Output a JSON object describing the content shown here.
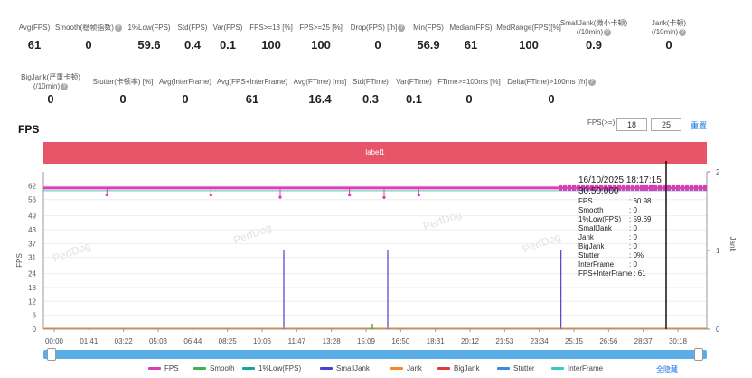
{
  "stats_row1": [
    {
      "label": "Avg(FPS)",
      "value": "61",
      "help": false
    },
    {
      "label": "Smooth(稳帧指数)",
      "value": "0",
      "help": true
    },
    {
      "label": "1%Low(FPS)",
      "value": "59.6",
      "help": false
    },
    {
      "label": "Std(FPS)",
      "value": "0.4",
      "help": false
    },
    {
      "label": "Var(FPS)",
      "value": "0.1",
      "help": false
    },
    {
      "label": "FPS>=18 [%]",
      "value": "100",
      "help": false
    },
    {
      "label": "FPS>=25 [%]",
      "value": "100",
      "help": false
    },
    {
      "label": "Drop(FPS) [/h]",
      "value": "0",
      "help": true
    },
    {
      "label": "Min(FPS)",
      "value": "56.9",
      "help": false
    },
    {
      "label": "Median(FPS)",
      "value": "61",
      "help": false
    },
    {
      "label": "MedRange(FPS)[%]",
      "value": "100",
      "help": false
    },
    {
      "label": "SmallJank(微小卡顿)",
      "label2": "(/10min)",
      "value": "0.9",
      "help": true
    },
    {
      "label": "Jank(卡顿)",
      "label2": "(/10min)",
      "value": "0",
      "help": true
    }
  ],
  "stats_row2": [
    {
      "label": "BigJank(严重卡顿)",
      "label2": "(/10min)",
      "value": "0",
      "help": true
    },
    {
      "label": "Stutter(卡顿率) [%]",
      "value": "0",
      "help": false
    },
    {
      "label": "Avg(InterFrame)",
      "value": "0",
      "help": false
    },
    {
      "label": "Avg(FPS+InterFrame)",
      "value": "61",
      "help": false
    },
    {
      "label": "Avg(FTime) [ms]",
      "value": "16.4",
      "help": false
    },
    {
      "label": "Std(FTime)",
      "value": "0.3",
      "help": false
    },
    {
      "label": "Var(FTime)",
      "value": "0.1",
      "help": false
    },
    {
      "label": "FTime>=100ms [%]",
      "value": "0",
      "help": false
    },
    {
      "label": "Delta(FTime)>100ms [/h]",
      "value": "0",
      "help": true
    }
  ],
  "section_title": "FPS",
  "fps_filter": {
    "label": "FPS(>=)",
    "value1": "18",
    "value2": "25",
    "reset_label": "重置"
  },
  "label_bar": "label1",
  "chart_data": {
    "type": "line",
    "x_ticks": [
      "00:00",
      "01:41",
      "03:22",
      "05:03",
      "06:44",
      "08:25",
      "10:06",
      "11:47",
      "13:28",
      "15:09",
      "16:50",
      "18:31",
      "20:12",
      "21:53",
      "23:34",
      "25:15",
      "26:56",
      "28:37",
      "30:18"
    ],
    "y_ticks_left": [
      "0",
      "6",
      "12",
      "18",
      "24",
      "31",
      "37",
      "43",
      "49",
      "56",
      "62"
    ],
    "y_ticks_right": [
      "0",
      "1",
      "2"
    ],
    "ylabel_left": "FPS",
    "ylabel_right": "Jank",
    "ylim_left": [
      0,
      68
    ],
    "ylim_right": [
      0,
      2
    ],
    "fps_level": 61,
    "fps_low_dips": [
      {
        "t": "01:41",
        "v": 58
      },
      {
        "t": "06:44",
        "v": 58
      },
      {
        "t": "10:06",
        "v": 57
      },
      {
        "t": "13:28",
        "v": 58
      },
      {
        "t": "15:09",
        "v": 56.9
      },
      {
        "t": "16:50",
        "v": 58
      }
    ],
    "small_jank_spikes": [
      {
        "t": "10:06",
        "v": 1
      },
      {
        "t": "15:09",
        "v": 1
      },
      {
        "t": "23:34",
        "v": 1
      }
    ],
    "watermark": "PerfDog"
  },
  "tooltip": {
    "datetime": "16/10/2025 18:17:15",
    "time": "30:50:000",
    "rows": [
      {
        "k": "FPS",
        "v": ": 60.98"
      },
      {
        "k": "Smooth",
        "v": ": 0"
      },
      {
        "k": "1%Low(FPS)",
        "v": ": 59.69"
      },
      {
        "k": "SmallJank",
        "v": ": 0"
      },
      {
        "k": "Jank",
        "v": ": 0"
      },
      {
        "k": "BigJank",
        "v": ": 0"
      },
      {
        "k": "Stutter",
        "v": ": 0%"
      },
      {
        "k": "InterFrame",
        "v": ": 0"
      },
      {
        "k": "FPS+InterFrame",
        "v": ": 61"
      }
    ]
  },
  "legend": [
    {
      "name": "FPS",
      "color": "#d63fb8"
    },
    {
      "name": "Smooth",
      "color": "#3bb34a"
    },
    {
      "name": "1%Low(FPS)",
      "color": "#1aa39a"
    },
    {
      "name": "SmallJank",
      "color": "#4b3fd6"
    },
    {
      "name": "Jank",
      "color": "#f08a24"
    },
    {
      "name": "BigJank",
      "color": "#e03a3a"
    },
    {
      "name": "Stutter",
      "color": "#3d8be0"
    },
    {
      "name": "InterFrame",
      "color": "#36c9c0"
    }
  ],
  "hide_all_label": "全隐藏"
}
